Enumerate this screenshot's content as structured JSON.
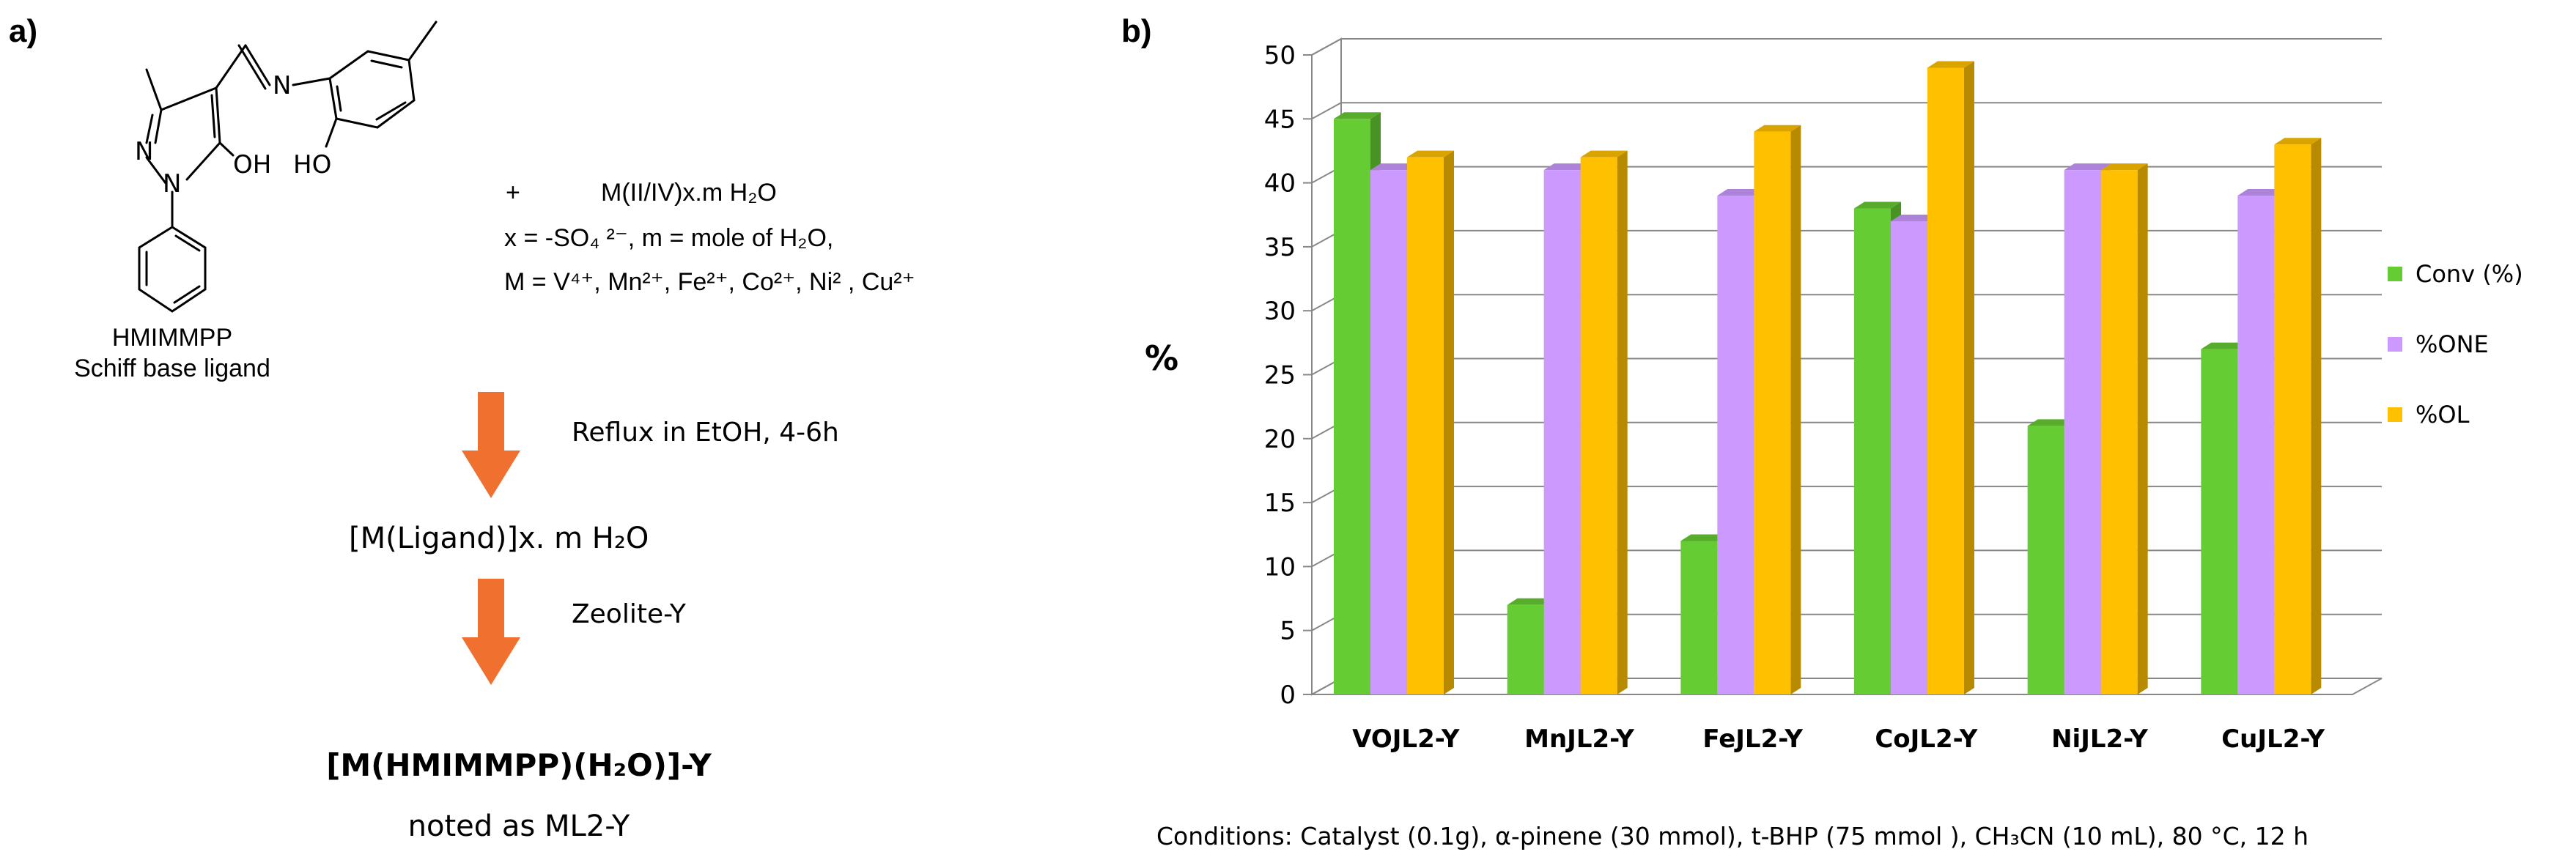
{
  "panel_a": {
    "label": "a)",
    "ligand": {
      "atom_N_imine": "N",
      "atom_OH_phenol": "HO",
      "atom_OH_pyrazole": "OH",
      "atom_N1": "N",
      "atom_N2": "N",
      "name": "HMIMMPP",
      "subtitle": "Schiff base ligand"
    },
    "reagent": {
      "plus": "+",
      "line1": "M(II/IV)x.m H₂O",
      "line2": "x = -SO₄ ²⁻, m = mole of H₂O,",
      "line3": "M = V⁴⁺, Mn²⁺, Fe²⁺, Co²⁺, Ni² , Cu²⁺"
    },
    "step1": "Reflux in EtOH, 4-6h",
    "intermediate": "[M(Ligand)]x. m H₂O",
    "step2": "Zeolite-Y",
    "product": "[M(HMIMMPP)(H₂O)]-Y",
    "noted": "noted as ML2-Y",
    "arrow_color": "#F07030"
  },
  "panel_b": {
    "label": "b)",
    "ylabel_text": "%",
    "conditions": "Conditions: Catalyst (0.1g), α-pinene (30 mmol), t-BHP (75 mmol ), CH₃CN (10 mL), 80 °C, 12 h"
  },
  "chart_data": {
    "type": "bar",
    "categories": [
      "VOJL2-Y",
      "MnJL2-Y",
      "FeJL2-Y",
      "CoJL2-Y",
      "NiJL2-Y",
      "CuJL2-Y"
    ],
    "series": [
      {
        "name": "Conv (%)",
        "color": "#66CC33",
        "values": [
          45,
          7,
          12,
          38,
          21,
          27
        ]
      },
      {
        "name": "%ONE",
        "color": "#CC99FF",
        "values": [
          41,
          41,
          39,
          37,
          41,
          39
        ]
      },
      {
        "name": "%OL",
        "color": "#FFC000",
        "values": [
          42,
          42,
          44,
          49,
          41,
          43
        ]
      }
    ],
    "ylim": [
      0,
      50
    ],
    "yticks": [
      0,
      5,
      10,
      15,
      20,
      25,
      30,
      35,
      40,
      45,
      50
    ],
    "ylabel": "%",
    "xlabel": "",
    "grid": true,
    "legend": "right"
  }
}
